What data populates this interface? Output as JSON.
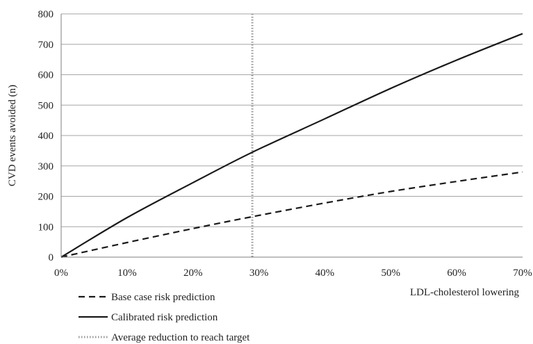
{
  "chart_data": {
    "type": "line",
    "title": "",
    "xlabel": "LDL-cholesterol lowering",
    "ylabel": "CVD events avoided  (n)",
    "x_unit": "percent",
    "xlim": [
      0,
      70
    ],
    "ylim": [
      0,
      800
    ],
    "x_ticks": [
      0,
      10,
      20,
      30,
      40,
      50,
      60,
      70
    ],
    "x_tick_labels": [
      "0%",
      "10%",
      "20%",
      "30%",
      "40%",
      "50%",
      "60%",
      "70%"
    ],
    "y_ticks": [
      0,
      100,
      200,
      300,
      400,
      500,
      600,
      700,
      800
    ],
    "y_tick_labels": [
      "0",
      "100",
      "200",
      "300",
      "400",
      "500",
      "600",
      "700",
      "800"
    ],
    "grid": "horizontal",
    "legend_position": "bottom-left",
    "series": [
      {
        "name": "Base case risk prediction",
        "style": "dashed",
        "color": "#1a1a1a",
        "x": [
          0,
          10,
          20,
          29,
          40,
          50,
          60,
          70
        ],
        "y": [
          0,
          48,
          94,
          133,
          178,
          216,
          249,
          280
        ]
      },
      {
        "name": "Calibrated risk prediction",
        "style": "solid",
        "color": "#1a1a1a",
        "x": [
          0,
          10,
          20,
          29,
          40,
          50,
          60,
          70
        ],
        "y": [
          0,
          130,
          245,
          345,
          455,
          555,
          648,
          735
        ]
      }
    ],
    "reference_lines": [
      {
        "name": "Average reduction to reach target",
        "orientation": "vertical",
        "x": 29,
        "style": "dotted",
        "color": "#999999"
      }
    ]
  }
}
